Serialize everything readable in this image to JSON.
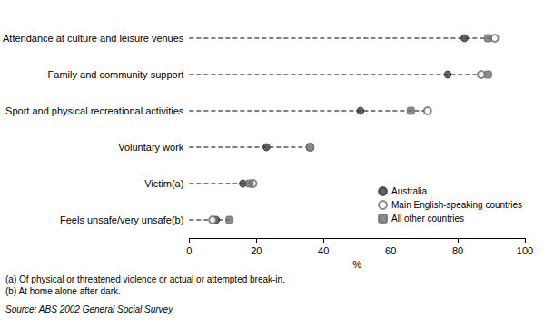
{
  "chart_data": {
    "type": "dot",
    "orientation": "horizontal",
    "categories": [
      "Attendance at culture and leisure venues",
      "Family and community support",
      "Sport and physical recreational activities",
      "Voluntary work",
      "Victim(a)",
      "Feels unsafe/very unsafe(b)"
    ],
    "series": [
      {
        "name": "Australia",
        "color": "#3a3a3a",
        "marker": "circle",
        "values": [
          82,
          77,
          51,
          23,
          16,
          8
        ]
      },
      {
        "name": "Main English-speaking countries",
        "color": "#6e6e6e",
        "marker": "open_circle",
        "values": [
          91,
          87,
          71,
          36,
          19,
          7
        ]
      },
      {
        "name": "All other countries",
        "color": "#6e6e6e",
        "marker": "square",
        "values": [
          89,
          89,
          66,
          36,
          18,
          12
        ]
      }
    ],
    "x_label": "%",
    "xlim": [
      0,
      100
    ],
    "xticks": [
      0,
      20,
      40,
      60,
      80,
      100
    ],
    "grid": false,
    "legend": "lower right",
    "line_style": "dashed",
    "footnotes": [
      "(a) Of physical or threatened violence or actual or attempted break-in.",
      "(b) At home alone after dark."
    ],
    "source": "Source: ABS 2002 General Social Survey."
  }
}
